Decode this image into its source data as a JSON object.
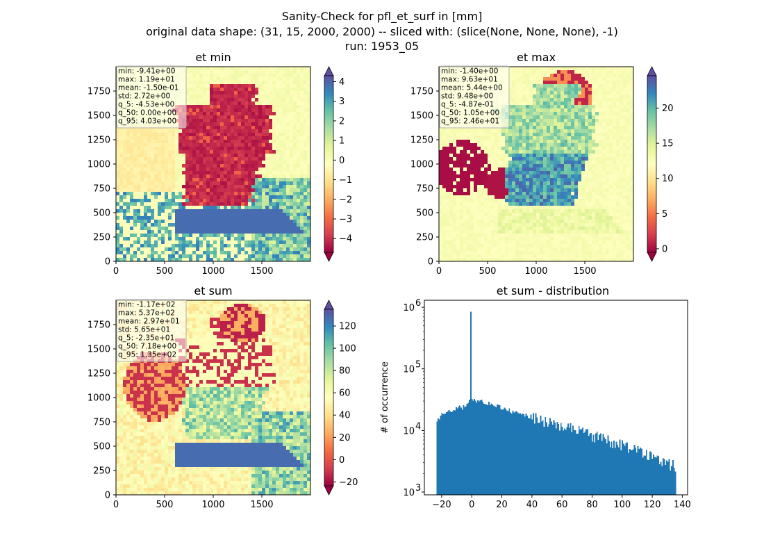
{
  "figure": {
    "title_lines": [
      "Sanity-Check for pfl_et_surf in [mm]",
      "original data shape: (31, 15, 2000, 2000) -- sliced with: (slice(None, None, None), -1)",
      "run: 1953_05"
    ]
  },
  "colormap": {
    "name": "Spectral",
    "stops": [
      "#9e0142",
      "#d53e4f",
      "#f46d43",
      "#fdae61",
      "#fee08b",
      "#ffffbf",
      "#e6f598",
      "#abdda4",
      "#66c2a5",
      "#3288bd",
      "#5e4fa2"
    ]
  },
  "chart_data": [
    {
      "type": "heatmap",
      "title": "et min",
      "xlim": [
        0,
        2000
      ],
      "ylim": [
        0,
        2000
      ],
      "xticks": [
        0,
        500,
        1000,
        1500
      ],
      "yticks": [
        0,
        250,
        500,
        750,
        1000,
        1250,
        1500,
        1750
      ],
      "colorbar": {
        "range": [
          -4.7,
          4.3
        ],
        "ticks": [
          4,
          3,
          2,
          1,
          0,
          -1,
          -2,
          -3,
          -4
        ],
        "extend": "both"
      },
      "stats": [
        "min: -9.41e+00",
        "max: 1.19e+01",
        "mean: -1.50e-01",
        "std: 2.72e+00",
        "q_5: -4.53e+00",
        "q_50: 0.00e+00",
        "q_95: 4.03e+00"
      ]
    },
    {
      "type": "heatmap",
      "title": "et max",
      "xlim": [
        0,
        2000
      ],
      "ylim": [
        0,
        2000
      ],
      "xticks": [
        0,
        500,
        1000,
        1500
      ],
      "yticks": [
        0,
        250,
        500,
        750,
        1000,
        1250,
        1500,
        1750
      ],
      "colorbar": {
        "range": [
          -0.5,
          24.6
        ],
        "ticks": [
          20,
          15,
          10,
          5,
          0
        ],
        "extend": "both"
      },
      "stats": [
        "min: -1.40e+00",
        "max: 9.63e+01",
        "mean: 5.44e+00",
        "std: 9.48e+00",
        "q_5: -4.87e-01",
        "q_50: 1.05e+00",
        "q_95: 2.46e+01"
      ]
    },
    {
      "type": "heatmap",
      "title": "et sum",
      "xlim": [
        0,
        2000
      ],
      "ylim": [
        0,
        2000
      ],
      "xticks": [
        0,
        500,
        1000,
        1500
      ],
      "yticks": [
        0,
        250,
        500,
        750,
        1000,
        1250,
        1500,
        1750
      ],
      "colorbar": {
        "range": [
          -23.5,
          135
        ],
        "ticks": [
          120,
          100,
          80,
          60,
          40,
          20,
          0,
          -20
        ],
        "extend": "both"
      },
      "stats": [
        "min: -1.17e+02",
        "max: 5.37e+02",
        "mean: 2.97e+01",
        "std: 5.65e+01",
        "q_5: -2.35e+01",
        "q_50: 7.18e+00",
        "q_95: 1.35e+02"
      ]
    },
    {
      "type": "bar",
      "title": "et sum - distribution",
      "ylabel": "# of occurrence",
      "yscale": "log",
      "xlim": [
        -31.5,
        143.5
      ],
      "ylim": [
        900,
        1300000
      ],
      "xticks": [
        -20,
        0,
        20,
        40,
        60,
        80,
        100,
        120,
        140
      ],
      "yticks": [
        {
          "value": 1000,
          "label": "10",
          "exp": "3"
        },
        {
          "value": 10000,
          "label": "10",
          "exp": "4"
        },
        {
          "value": 100000,
          "label": "10",
          "exp": "5"
        },
        {
          "value": 1000000,
          "label": "10",
          "exp": "6"
        }
      ],
      "color": "#1f77b4",
      "bin_start": -23.5,
      "bin_width": 0.8,
      "peak": {
        "x": -0.3,
        "value": 850000
      },
      "anchors": [
        [
          -23.5,
          12500
        ],
        [
          -21,
          17000
        ],
        [
          -18,
          20000
        ],
        [
          -12,
          22000
        ],
        [
          -6,
          24000
        ],
        [
          -2,
          27000
        ],
        [
          -1,
          32000
        ],
        [
          0,
          33000
        ],
        [
          2,
          30000
        ],
        [
          5,
          30000
        ],
        [
          10,
          28000
        ],
        [
          20,
          23000
        ],
        [
          30,
          19000
        ],
        [
          40,
          16500
        ],
        [
          50,
          14000
        ],
        [
          60,
          12000
        ],
        [
          70,
          10000
        ],
        [
          80,
          8500
        ],
        [
          90,
          7000
        ],
        [
          100,
          6000
        ],
        [
          110,
          4800
        ],
        [
          120,
          3800
        ],
        [
          130,
          3000
        ],
        [
          135,
          2600
        ]
      ]
    }
  ]
}
